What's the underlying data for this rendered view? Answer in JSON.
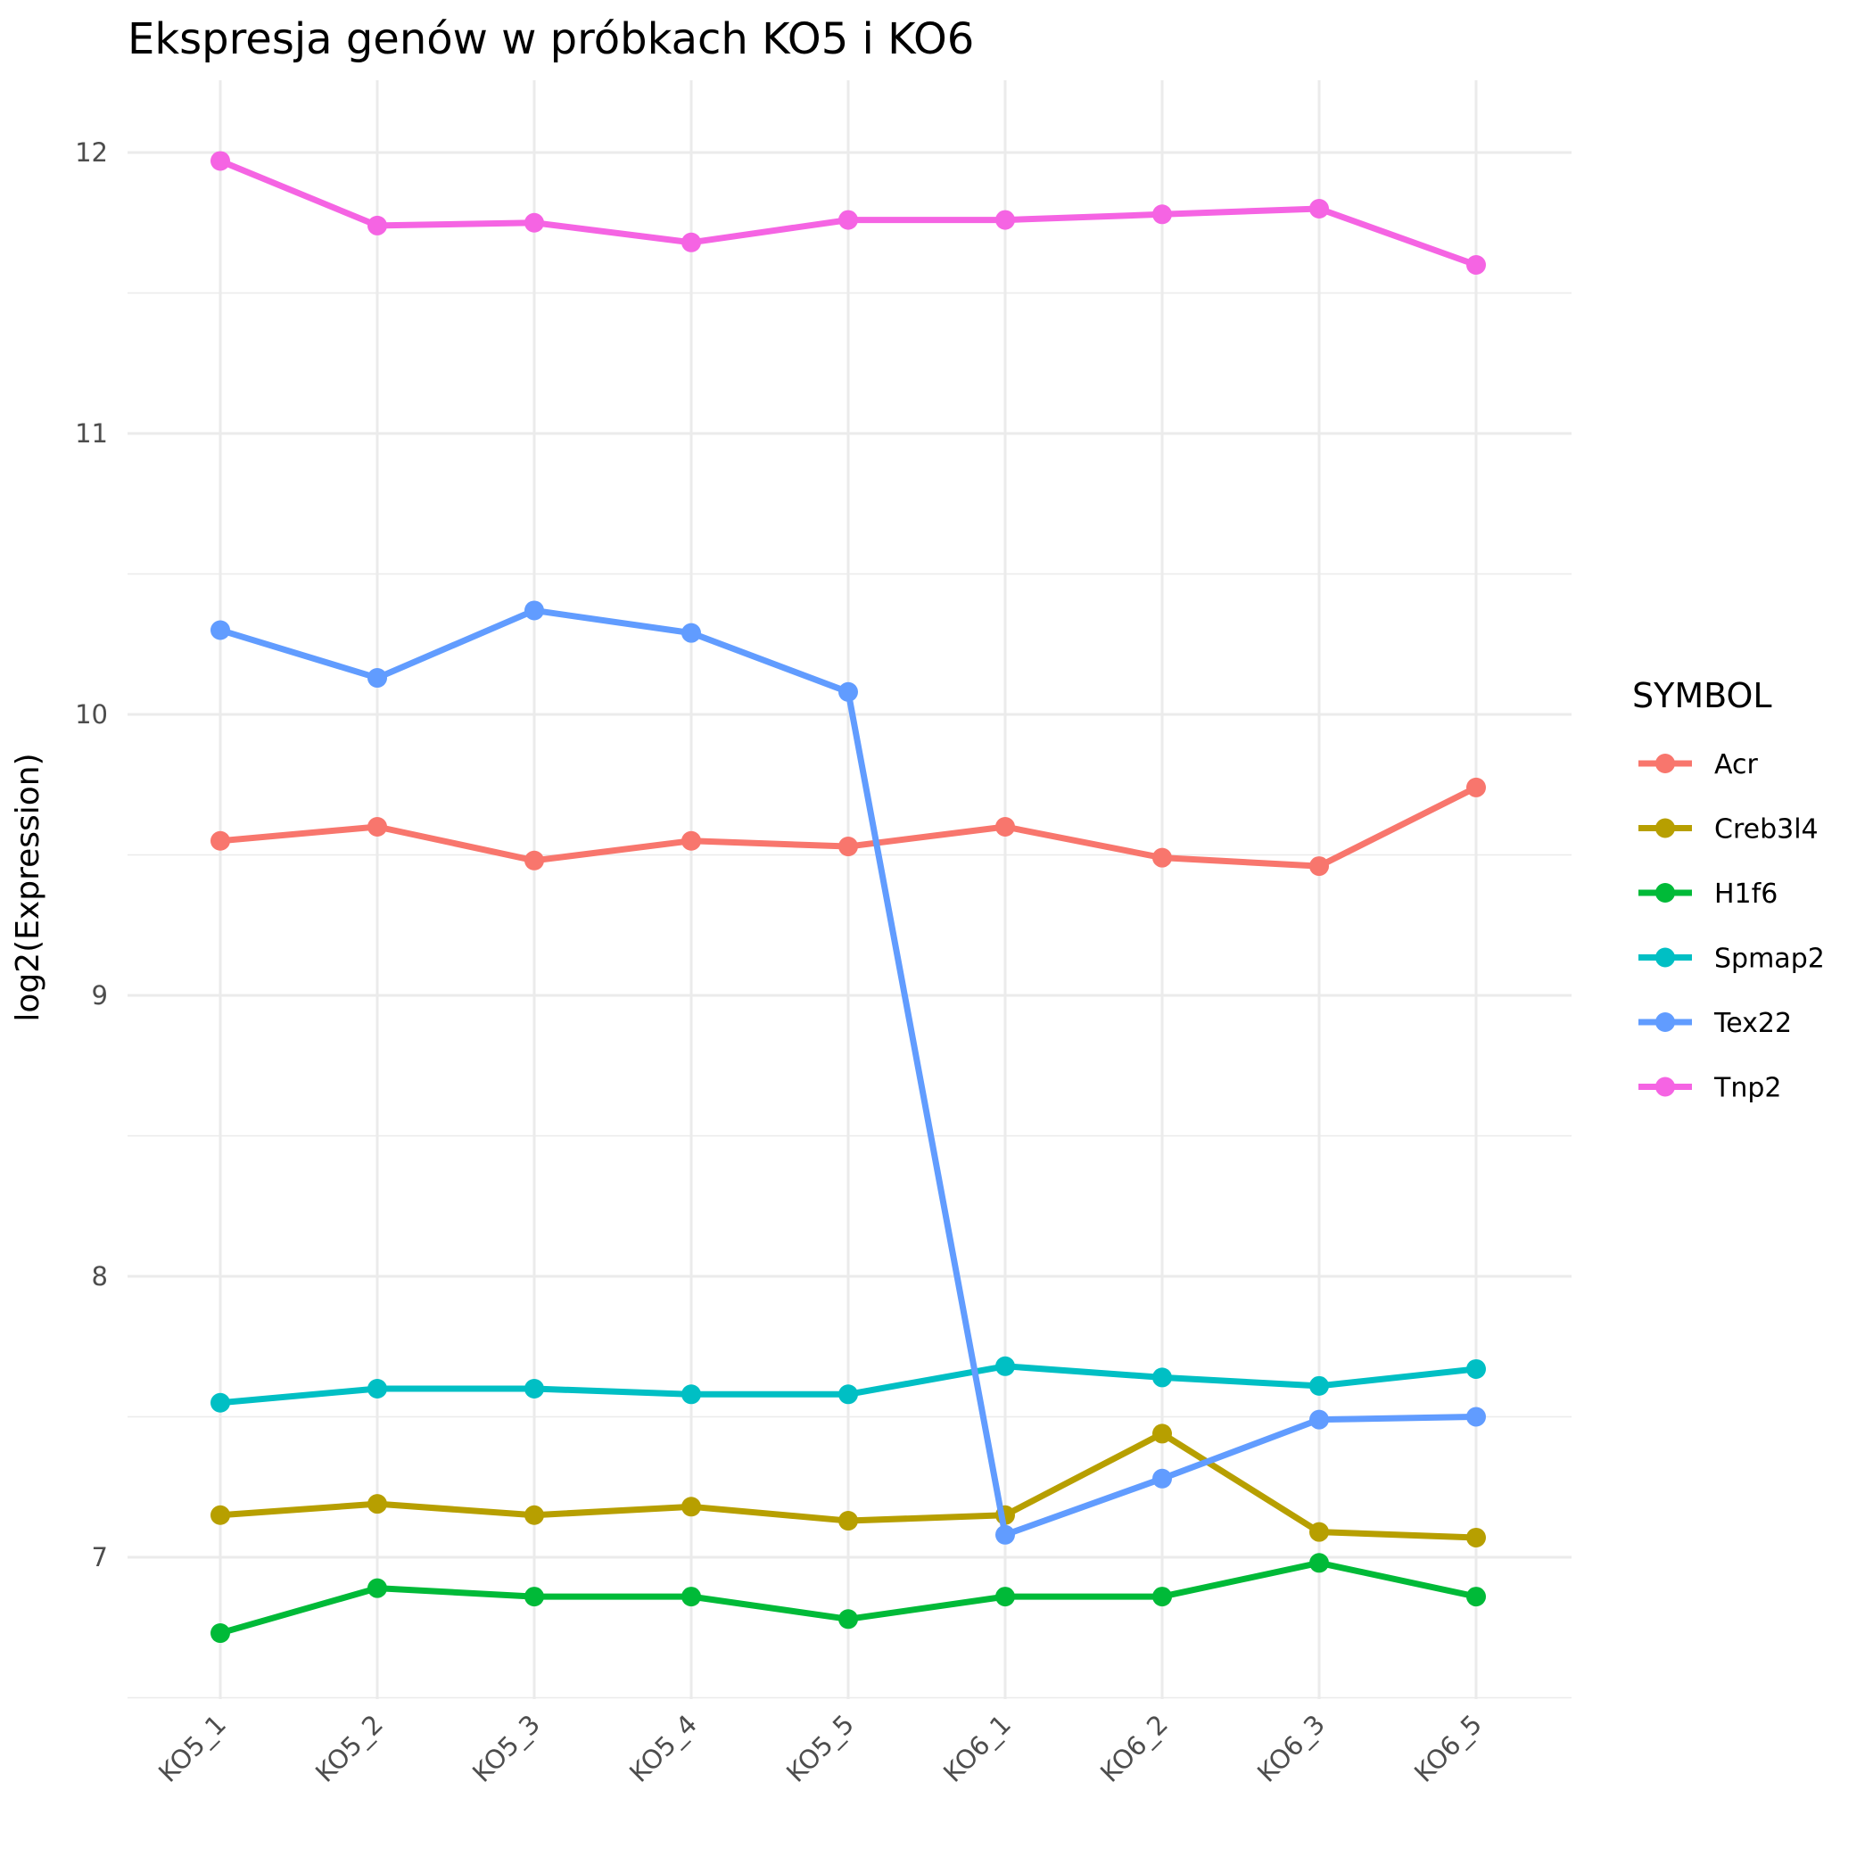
{
  "chart_data": {
    "type": "line",
    "title": "Ekspresja genów w próbkach KO5 i KO6",
    "xlabel": "",
    "ylabel": "log2(Expression)",
    "categories": [
      "KO5_1",
      "KO5_2",
      "KO5_3",
      "KO5_4",
      "KO5_5",
      "KO6_1",
      "KO6_2",
      "KO6_3",
      "KO6_5"
    ],
    "ylim": [
      6.5,
      12.25
    ],
    "yticks": [
      7,
      8,
      9,
      10,
      11,
      12
    ],
    "grid": true,
    "legend": {
      "title": "SYMBOL",
      "position": "right"
    },
    "series": [
      {
        "name": "Acr",
        "color": "#F8766D",
        "values": [
          9.55,
          9.6,
          9.48,
          9.55,
          9.53,
          9.6,
          9.49,
          9.46,
          9.74
        ]
      },
      {
        "name": "Creb3l4",
        "color": "#B79F00",
        "values": [
          7.15,
          7.19,
          7.15,
          7.18,
          7.13,
          7.15,
          7.44,
          7.09,
          7.07
        ]
      },
      {
        "name": "H1f6",
        "color": "#00BA38",
        "values": [
          6.73,
          6.89,
          6.86,
          6.86,
          6.78,
          6.86,
          6.86,
          6.98,
          6.86
        ]
      },
      {
        "name": "Spmap2",
        "color": "#00BFC4",
        "values": [
          7.55,
          7.6,
          7.6,
          7.58,
          7.58,
          7.68,
          7.64,
          7.61,
          7.67
        ]
      },
      {
        "name": "Tex22",
        "color": "#619CFF",
        "values": [
          10.3,
          10.13,
          10.37,
          10.29,
          10.08,
          7.08,
          7.28,
          7.49,
          7.5
        ]
      },
      {
        "name": "Tnp2",
        "color": "#F564E3",
        "values": [
          11.97,
          11.74,
          11.75,
          11.68,
          11.76,
          11.76,
          11.78,
          11.8,
          11.6
        ]
      }
    ]
  }
}
